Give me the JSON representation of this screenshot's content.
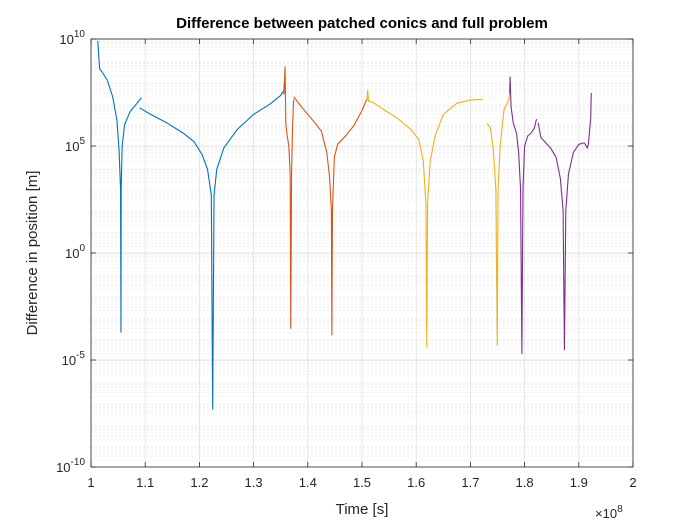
{
  "chart_data": {
    "type": "line",
    "title": "Difference between patched conics and full problem",
    "xlabel": "Time [s]",
    "ylabel": "Difference in position [m]",
    "x_exponent_label": "×10",
    "x_exponent": "8",
    "xlim": [
      1,
      2
    ],
    "ylim": [
      1e-10,
      10000000000.0
    ],
    "yscale": "log",
    "grid": true,
    "minor_grid": true,
    "x_ticks": [
      "1",
      "1.1",
      "1.2",
      "1.3",
      "1.4",
      "1.5",
      "1.6",
      "1.7",
      "1.8",
      "1.9",
      "2"
    ],
    "y_ticks": [
      {
        "base": "10",
        "exp": "-10",
        "value": 1e-10
      },
      {
        "base": "10",
        "exp": "-5",
        "value": 1e-05
      },
      {
        "base": "10",
        "exp": "0",
        "value": 1
      },
      {
        "base": "10",
        "exp": "5",
        "value": 100000.0
      },
      {
        "base": "10",
        "exp": "10",
        "value": 10000000000.0
      }
    ],
    "x_unit_note": "x values in units of 1e8 s",
    "series": [
      {
        "color": "#0072BD",
        "segments": [
          [
            [
              1.0125,
              8200000000.0
            ],
            [
              1.014,
              2000000000.0
            ],
            [
              1.016,
              400000000.0
            ],
            [
              1.02,
              300000000.0
            ],
            [
              1.03,
              120000000.0
            ],
            [
              1.04,
              20000000.0
            ],
            [
              1.048,
              1500000.0
            ],
            [
              1.052,
              50000.0
            ],
            [
              1.0545,
              1000.0
            ],
            [
              1.0553,
              0.0002
            ],
            [
              1.0556,
              1000.0
            ],
            [
              1.0575,
              100000.0
            ],
            [
              1.062,
              1000000.0
            ],
            [
              1.072,
              4000000.0
            ],
            [
              1.085,
              10000000.0
            ],
            [
              1.093,
              18000000.0
            ]
          ],
          [
            [
              1.09,
              6000000.0
            ],
            [
              1.11,
              3000000.0
            ],
            [
              1.14,
              1200000.0
            ],
            [
              1.17,
              400000.0
            ],
            [
              1.19,
              160000.0
            ],
            [
              1.205,
              40000.0
            ],
            [
              1.215,
              8000.0
            ],
            [
              1.222,
              500.0
            ],
            [
              1.2245,
              5e-08
            ],
            [
              1.227,
              500.0
            ],
            [
              1.232,
              8000.0
            ],
            [
              1.245,
              80000.0
            ],
            [
              1.27,
              600000.0
            ],
            [
              1.3,
              3000000.0
            ],
            [
              1.33,
              9000000.0
            ],
            [
              1.35,
              23000000.0
            ],
            [
              1.356,
              40000000.0
            ],
            [
              1.357,
              100000000.0
            ]
          ]
        ]
      },
      {
        "color": "#D95319",
        "segments": [
          [
            [
              1.356,
              25000000.0
            ],
            [
              1.358,
              500000000.0
            ],
            [
              1.3595,
              1000000.0
            ],
            [
              1.362,
              300000.0
            ],
            [
              1.365,
              100000.0
            ],
            [
              1.3675,
              5000.0
            ],
            [
              1.3685,
              0.0003
            ],
            [
              1.37,
              5000.0
            ],
            [
              1.372,
              1000000.0
            ],
            [
              1.374,
              15000000.0
            ]
          ],
          [
            [
              1.374,
              20000000.0
            ],
            [
              1.39,
              6000000.0
            ],
            [
              1.41,
              1500000.0
            ],
            [
              1.425,
              500000.0
            ],
            [
              1.435,
              50000.0
            ],
            [
              1.44,
              4000.0
            ],
            [
              1.4435,
              100.0
            ],
            [
              1.4445,
              0.00015
            ],
            [
              1.4455,
              100.0
            ],
            [
              1.449,
              30000.0
            ],
            [
              1.455,
              120000.0
            ],
            [
              1.47,
              300000.0
            ],
            [
              1.485,
              900000.0
            ],
            [
              1.5,
              4500000.0
            ],
            [
              1.509,
              16000000.0
            ]
          ]
        ]
      },
      {
        "color": "#EDB120",
        "segments": [
          [
            [
              1.509,
              13000000.0
            ],
            [
              1.5105,
              40000000.0
            ],
            [
              1.512,
              12000000.0
            ],
            [
              1.52,
              11000000.0
            ],
            [
              1.54,
              5000000.0
            ],
            [
              1.565,
              2000000.0
            ],
            [
              1.59,
              600000.0
            ],
            [
              1.605,
              200000.0
            ],
            [
              1.613,
              20000.0
            ],
            [
              1.618,
              200.0
            ],
            [
              1.6195,
              4e-05
            ],
            [
              1.621,
              200.0
            ],
            [
              1.626,
              20000.0
            ],
            [
              1.635,
              300000.0
            ],
            [
              1.65,
              3000000.0
            ],
            [
              1.675,
              10000000.0
            ],
            [
              1.7,
              14000000.0
            ],
            [
              1.723,
              15000000.0
            ]
          ],
          [
            [
              1.731,
              1100000.0
            ],
            [
              1.737,
              700000.0
            ],
            [
              1.742,
              80000.0
            ],
            [
              1.747,
              1000.0
            ],
            [
              1.7495,
              5e-05
            ],
            [
              1.751,
              1000.0
            ],
            [
              1.755,
              100000.0
            ],
            [
              1.762,
              5000000.0
            ],
            [
              1.771,
              15000000.0
            ],
            [
              1.7725,
              30000000.0
            ]
          ]
        ]
      },
      {
        "color": "#7E2F8E",
        "segments": [
          [
            [
              1.7725,
              30000000.0
            ],
            [
              1.7732,
              170000000.0
            ],
            [
              1.775,
              7000000.0
            ],
            [
              1.779,
              1200000.0
            ],
            [
              1.785,
              400000.0
            ],
            [
              1.789,
              50000.0
            ],
            [
              1.7925,
              1000.0
            ],
            [
              1.795,
              2e-05
            ],
            [
              1.797,
              1000.0
            ],
            [
              1.8,
              100000.0
            ],
            [
              1.806,
              300000.0
            ],
            [
              1.812,
              400000.0
            ],
            [
              1.818,
              700000.0
            ],
            [
              1.822,
              1800000.0
            ]
          ],
          [
            [
              1.825,
              1200000.0
            ],
            [
              1.83,
              250000.0
            ],
            [
              1.838,
              150000.0
            ],
            [
              1.848,
              80000.0
            ],
            [
              1.858,
              30000.0
            ],
            [
              1.866,
              3000.0
            ],
            [
              1.871,
              100.0
            ],
            [
              1.8735,
              3e-05
            ],
            [
              1.876,
              100.0
            ],
            [
              1.881,
              5000.0
            ],
            [
              1.89,
              50000.0
            ],
            [
              1.9,
              120000.0
            ],
            [
              1.91,
              140000.0
            ],
            [
              1.916,
              80000.0
            ],
            [
              1.918,
              150000.0
            ],
            [
              1.922,
              2000000.0
            ],
            [
              1.923,
              30000000.0
            ]
          ]
        ]
      }
    ]
  }
}
